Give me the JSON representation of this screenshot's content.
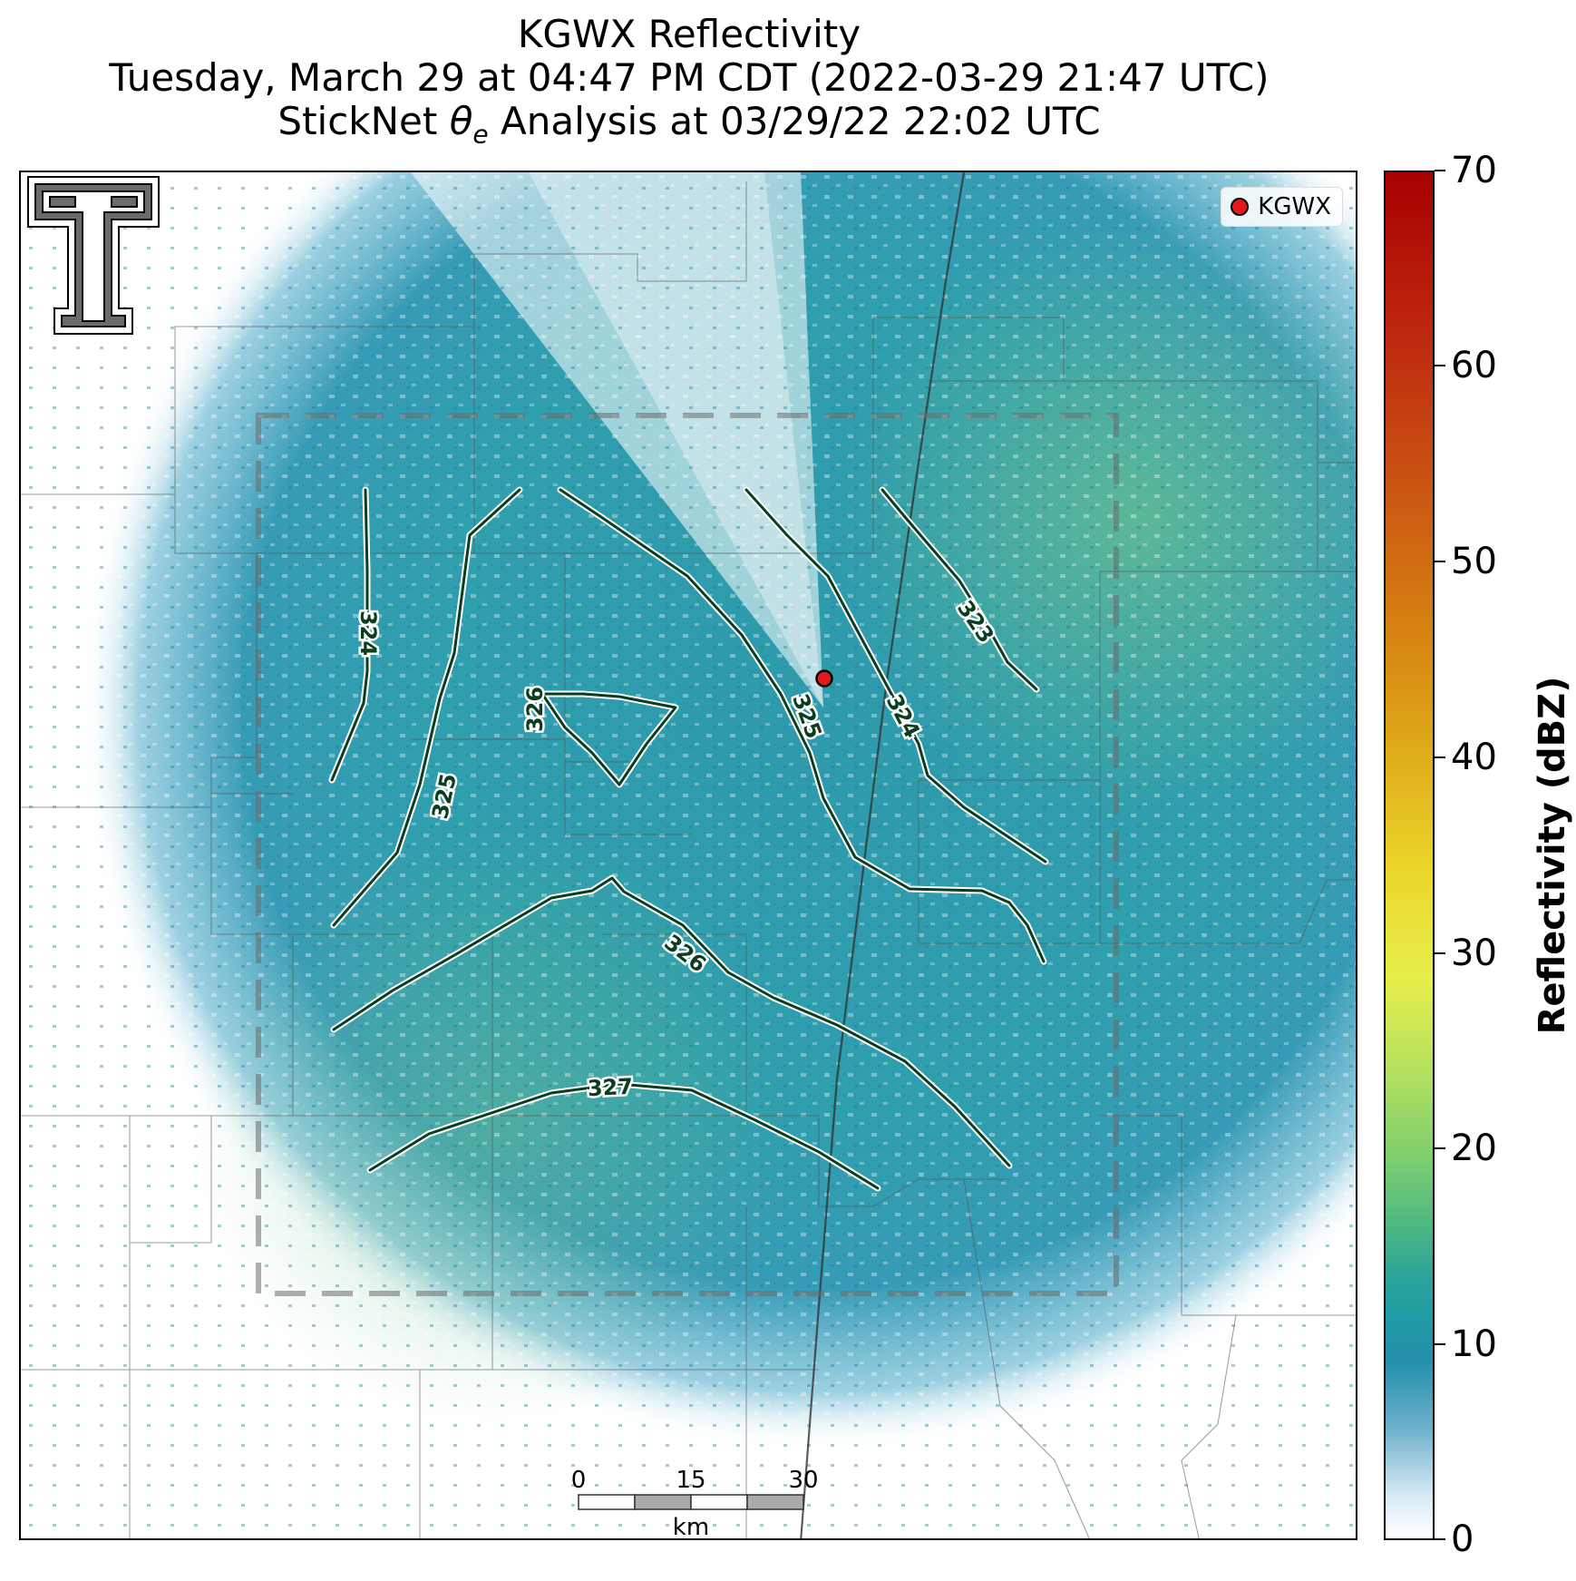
{
  "header": {
    "title": "KGWX Reflectivity",
    "subtitle_time": "Tuesday, March 29 at 04:47 PM CDT (2022-03-29 21:47 UTC)",
    "subtitle_analysis_prefix": "StickNet ",
    "subtitle_analysis_symbol": "θ",
    "subtitle_analysis_sub": "e",
    "subtitle_analysis_suffix": " Analysis at 03/29/22 22:02 UTC"
  },
  "legend": {
    "label": "KGWX",
    "marker_color": "#e31a1c"
  },
  "colorbar": {
    "label": "Reflectivity (dBZ)",
    "ticks": [
      "70",
      "60",
      "50",
      "40",
      "30",
      "20",
      "10",
      "0"
    ],
    "range": [
      0,
      70
    ]
  },
  "scalebar": {
    "ticks": [
      "0",
      "15",
      "30"
    ],
    "unit": "km"
  },
  "contours": {
    "labels": [
      "324",
      "326",
      "325",
      "325",
      "324",
      "323",
      "326",
      "327"
    ],
    "line_color": "#0b3d1f",
    "halo_color": "#ffffff"
  },
  "colors": {
    "reflectivity_base": "#2a97ab",
    "reflectivity_high": "#5fb98a",
    "county_lines": "#555555"
  }
}
